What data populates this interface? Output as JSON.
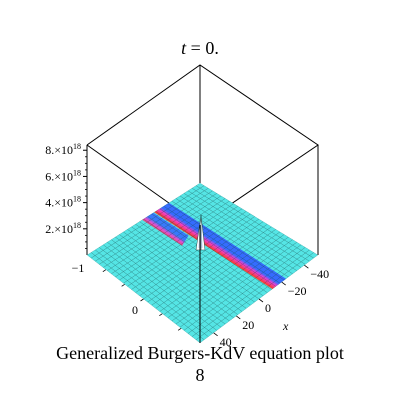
{
  "chart_data": {
    "type": "surface3d",
    "title": "t = 0.",
    "title_var": "t",
    "title_rest": " = 0.",
    "xlabel": "x",
    "ylabel": "",
    "zlabel": "",
    "x_ticks": [
      "−40",
      "−20",
      "0",
      "20",
      "40"
    ],
    "y_ticks": [
      "−1",
      "0"
    ],
    "z_ticks": [
      {
        "mantissa": "8.×10",
        "exp": "18"
      },
      {
        "mantissa": "6.×10",
        "exp": "18"
      },
      {
        "mantissa": "4.×10",
        "exp": "18"
      },
      {
        "mantissa": "2.×10",
        "exp": "18"
      }
    ],
    "peak_z": 8e+18,
    "colors": {
      "surface": "#55e5e5",
      "band": [
        "#ff33cc",
        "#ff3333",
        "#ffcc00",
        "#ccff33"
      ],
      "mesh": "#1a4a4a",
      "box": "#000000"
    }
  },
  "caption": {
    "line1": "Generalized  Burgers-KdV equation plot",
    "line2": "8"
  }
}
